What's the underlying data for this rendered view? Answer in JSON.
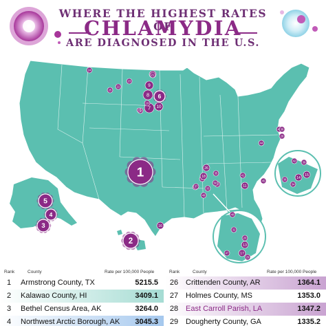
{
  "title": {
    "line1": "WHERE THE HIGHEST RATES OF",
    "line2": "CHLAMYDIA",
    "line3": "ARE DIAGNOSED IN THE U.S."
  },
  "colors": {
    "map_fill": "#5bbfb0",
    "marker": "#8b2a86",
    "title": "#6e2f74",
    "row_teal": "#a5dcd3",
    "row_purple": "#c9a3d1"
  },
  "markers": [
    {
      "label": "1"
    },
    {
      "label": "2"
    },
    {
      "label": "3"
    },
    {
      "label": "4"
    },
    {
      "label": "5"
    },
    {
      "label": "6"
    },
    {
      "label": "7"
    },
    {
      "label": "8"
    },
    {
      "label": "9"
    },
    {
      "label": "10"
    },
    {
      "label": "12"
    },
    {
      "label": "16"
    },
    {
      "label": "19"
    },
    {
      "label": "21"
    },
    {
      "label": "22"
    },
    {
      "label": "23"
    },
    {
      "label": "24"
    },
    {
      "label": "25"
    },
    {
      "label": "26"
    },
    {
      "label": "27"
    },
    {
      "label": "30"
    },
    {
      "label": "31"
    },
    {
      "label": "33"
    },
    {
      "label": "35"
    },
    {
      "label": "37"
    },
    {
      "label": "38"
    },
    {
      "label": "40"
    },
    {
      "label": "41"
    },
    {
      "label": "43"
    },
    {
      "label": "44"
    },
    {
      "label": "45"
    },
    {
      "label": "46"
    },
    {
      "label": "47"
    },
    {
      "label": "48"
    },
    {
      "label": "49"
    },
    {
      "label": "50"
    },
    {
      "label": "11"
    },
    {
      "label": "13"
    },
    {
      "label": "14"
    },
    {
      "label": "15"
    },
    {
      "label": "17"
    },
    {
      "label": "18"
    },
    {
      "label": "20"
    },
    {
      "label": "28"
    },
    {
      "label": "29"
    },
    {
      "label": "32"
    },
    {
      "label": "34"
    },
    {
      "label": "36"
    },
    {
      "label": "39"
    },
    {
      "label": "42"
    }
  ],
  "table": {
    "headers": {
      "rank": "Rank",
      "county": "County",
      "rate": "Rate per 100,000 People"
    },
    "left": [
      {
        "rank": "1",
        "county": "Armstrong County, TX",
        "rate": "5215.5"
      },
      {
        "rank": "2",
        "county": "Kalawao County, HI",
        "rate": "3409.1"
      },
      {
        "rank": "3",
        "county": "Bethel Census Area, AK",
        "rate": "3264.0"
      },
      {
        "rank": "4",
        "county": "Northwest Arctic Borough, AK",
        "rate": "3045.3"
      }
    ],
    "right": [
      {
        "rank": "26",
        "county": "Crittenden County, AR",
        "rate": "1364.1"
      },
      {
        "rank": "27",
        "county": "Holmes County, MS",
        "rate": "1353.0"
      },
      {
        "rank": "28",
        "county": "East Carroll Parish, LA",
        "rate": "1347.2"
      },
      {
        "rank": "29",
        "county": "Dougherty County, GA",
        "rate": "1335.2"
      }
    ]
  }
}
